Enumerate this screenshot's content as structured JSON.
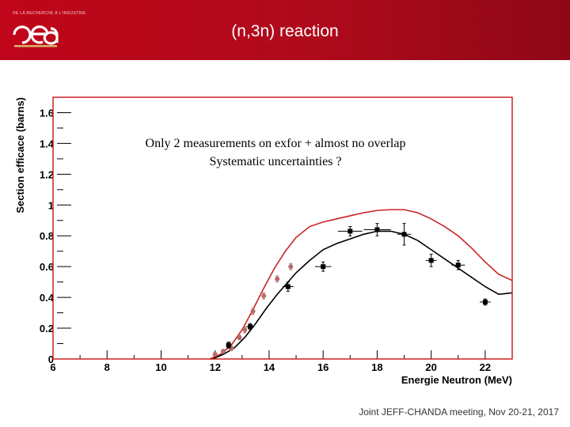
{
  "header": {
    "title": "(n,3n) reaction",
    "logo_text": "cea",
    "logo_tagline": "DE LA RECHERCHE À L'INDUSTRIE",
    "bar_color": "#c0061a"
  },
  "footer": {
    "text": "Joint JEFF-CHANDA meeting, Nov 20-21, 2017"
  },
  "chart_data": {
    "type": "scatter",
    "annotation": [
      "Only 2 measurements on exfor + almost no overlap",
      "Systematic uncertainties ?"
    ],
    "xlabel": "Energie Neutron (MeV)",
    "ylabel": "Section efficace (barns)",
    "xlim": [
      6,
      23
    ],
    "ylim": [
      0,
      1.7
    ],
    "x_ticks": [
      6,
      8,
      10,
      12,
      14,
      16,
      18,
      20,
      22
    ],
    "y_ticks": [
      0,
      0.2,
      0.4,
      0.6,
      0.8,
      1,
      1.2,
      1.4,
      1.6
    ],
    "y_tick_labels": [
      "0",
      "0.2",
      "0.4",
      "0.6",
      "0.8",
      "1",
      "1.2",
      "1.4",
      "1.6"
    ],
    "grid": false,
    "series": [
      {
        "kind": "line",
        "color": "#cc2222",
        "x": [
          11.8,
          12.2,
          12.6,
          13.0,
          13.4,
          13.8,
          14.2,
          14.6,
          15.0,
          15.5,
          16.0,
          16.5,
          17.0,
          17.5,
          18.0,
          18.5,
          19.0,
          19.5,
          20.0,
          20.5,
          21.0,
          21.5,
          22.0,
          22.5,
          23.0
        ],
        "y": [
          0.0,
          0.03,
          0.09,
          0.19,
          0.32,
          0.46,
          0.59,
          0.7,
          0.79,
          0.86,
          0.89,
          0.91,
          0.93,
          0.95,
          0.965,
          0.97,
          0.97,
          0.95,
          0.91,
          0.86,
          0.8,
          0.72,
          0.63,
          0.55,
          0.51
        ]
      },
      {
        "kind": "line",
        "color": "#000000",
        "x": [
          11.9,
          12.3,
          12.7,
          13.1,
          13.5,
          13.9,
          14.3,
          14.7,
          15.0,
          15.5,
          16.0,
          16.5,
          17.0,
          17.5,
          18.0,
          18.5,
          19.0,
          19.5,
          20.0,
          20.5,
          21.0,
          21.5,
          22.0,
          22.5,
          23.0
        ],
        "y": [
          0.0,
          0.03,
          0.07,
          0.14,
          0.23,
          0.33,
          0.42,
          0.5,
          0.56,
          0.64,
          0.71,
          0.75,
          0.78,
          0.81,
          0.83,
          0.83,
          0.81,
          0.77,
          0.71,
          0.65,
          0.59,
          0.53,
          0.47,
          0.42,
          0.43
        ]
      },
      {
        "kind": "points",
        "color": "#b86a6a",
        "x": [
          12.0,
          12.3,
          12.6,
          12.9,
          13.1,
          13.4,
          13.8,
          14.3,
          14.8
        ],
        "y": [
          0.03,
          0.05,
          0.07,
          0.14,
          0.19,
          0.31,
          0.41,
          0.52,
          0.6
        ],
        "yerr": [
          0.012,
          0.012,
          0.015,
          0.015,
          0.02,
          0.02,
          0.02,
          0.02,
          0.02
        ]
      },
      {
        "kind": "points",
        "color": "#000000",
        "x": [
          12.5,
          13.3,
          14.7,
          16.0,
          17.0,
          18.0,
          19.0,
          20.0,
          21.0,
          22.0
        ],
        "y": [
          0.09,
          0.21,
          0.47,
          0.6,
          0.83,
          0.84,
          0.81,
          0.64,
          0.61,
          0.37
        ],
        "yerr": [
          0.02,
          0.02,
          0.03,
          0.03,
          0.03,
          0.04,
          0.07,
          0.04,
          0.03,
          0.02
        ],
        "xerr": [
          0.1,
          0.15,
          0.2,
          0.3,
          0.45,
          0.5,
          0.25,
          0.2,
          0.25,
          0.2
        ]
      }
    ]
  }
}
